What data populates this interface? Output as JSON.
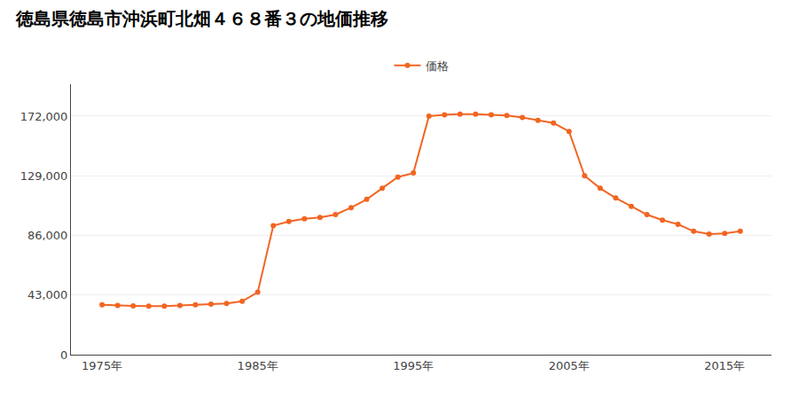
{
  "chart_data": {
    "type": "line",
    "title": "徳島県徳島市沖浜町北畑４６８番３の地価推移",
    "x": [
      1975,
      1976,
      1977,
      1978,
      1979,
      1980,
      1981,
      1982,
      1983,
      1984,
      1985,
      1986,
      1987,
      1988,
      1989,
      1990,
      1991,
      1992,
      1993,
      1994,
      1995,
      1996,
      1997,
      1998,
      1999,
      2000,
      2001,
      2002,
      2003,
      2004,
      2005,
      2006,
      2007,
      2008,
      2009,
      2010,
      2011,
      2012,
      2013,
      2014,
      2015,
      2016
    ],
    "series": [
      {
        "name": "価格",
        "color": "#f26522",
        "marker": "circle",
        "line_style": "solid",
        "values": [
          36000,
          35500,
          35200,
          35000,
          35000,
          35500,
          36000,
          36500,
          37000,
          38500,
          45000,
          93000,
          96000,
          98000,
          99000,
          101000,
          106000,
          112000,
          120000,
          128000,
          131000,
          172000,
          173000,
          173500,
          173500,
          173000,
          172500,
          171000,
          169000,
          167000,
          161000,
          129000,
          120000,
          113000,
          107000,
          101000,
          97000,
          94000,
          89000,
          87000,
          87500,
          89000
        ]
      }
    ],
    "xlim": [
      1973,
      2018
    ],
    "xticks": [
      {
        "value": 1975,
        "label": "1975年"
      },
      {
        "value": 1985,
        "label": "1985年"
      },
      {
        "value": 1995,
        "label": "1995年"
      },
      {
        "value": 2005,
        "label": "2005年"
      },
      {
        "value": 2015,
        "label": "2015年"
      }
    ],
    "ylim": [
      0,
      195000
    ],
    "yticks": [
      0,
      {
        "value": 43000,
        "label": "43,000"
      },
      {
        "value": 86000,
        "label": "86,000"
      },
      {
        "value": 129000,
        "label": "129,000"
      },
      {
        "value": 172000,
        "label": "172,000"
      }
    ],
    "grid": "y",
    "legend": "top"
  }
}
